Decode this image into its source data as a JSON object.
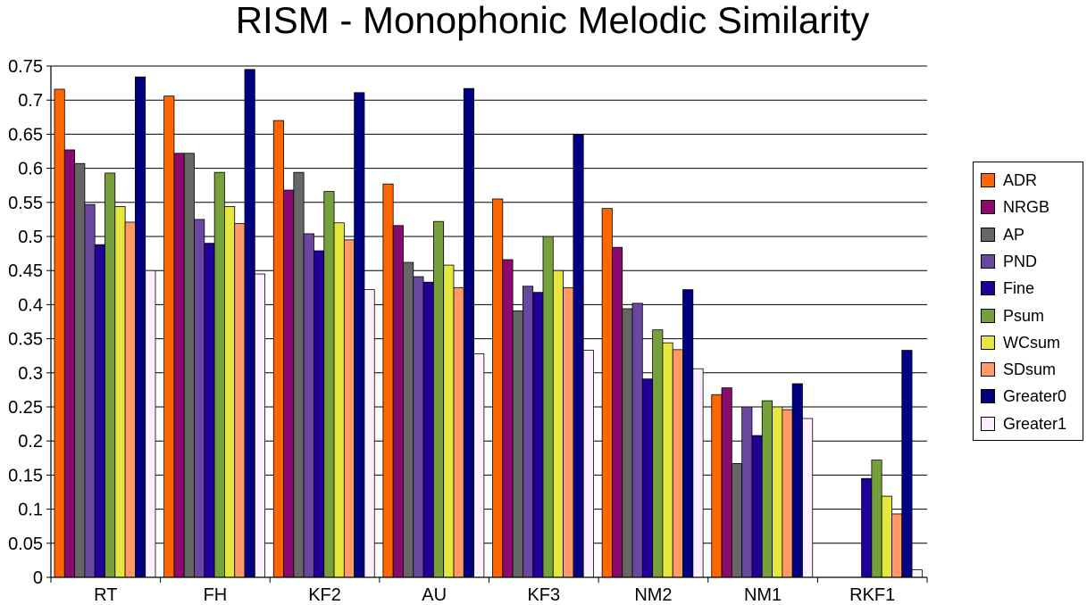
{
  "chart_data": {
    "type": "bar",
    "title": "RISM - Monophonic Melodic Similarity",
    "xlabel": "",
    "ylabel": "",
    "ylim": [
      0,
      0.75
    ],
    "yticks": [
      "0",
      "0.05",
      "0.1",
      "0.15",
      "0.2",
      "0.25",
      "0.3",
      "0.35",
      "0.4",
      "0.45",
      "0.5",
      "0.55",
      "0.6",
      "0.65",
      "0.7",
      "0.75"
    ],
    "grid": true,
    "legend_position": "right",
    "categories": [
      "RT",
      "FH",
      "KF2",
      "AU",
      "KF3",
      "NM2",
      "NM1",
      "RKF1"
    ],
    "series": [
      {
        "name": "ADR",
        "color": "#FF6600",
        "values": [
          0.716,
          0.706,
          0.67,
          0.577,
          0.555,
          0.541,
          0.268,
          0.0
        ]
      },
      {
        "name": "NRGB",
        "color": "#8B0A6E",
        "values": [
          0.627,
          0.622,
          0.568,
          0.516,
          0.466,
          0.484,
          0.278,
          0.0
        ]
      },
      {
        "name": "AP",
        "color": "#666666",
        "values": [
          0.607,
          0.622,
          0.594,
          0.462,
          0.391,
          0.394,
          0.167,
          0.0
        ]
      },
      {
        "name": "PND",
        "color": "#6A48A0",
        "values": [
          0.547,
          0.525,
          0.504,
          0.441,
          0.427,
          0.402,
          0.25,
          0.0
        ]
      },
      {
        "name": "Fine",
        "color": "#200099",
        "values": [
          0.488,
          0.49,
          0.479,
          0.433,
          0.418,
          0.291,
          0.208,
          0.145
        ]
      },
      {
        "name": "Psum",
        "color": "#77A03C",
        "values": [
          0.593,
          0.594,
          0.566,
          0.522,
          0.5,
          0.363,
          0.259,
          0.172
        ]
      },
      {
        "name": "WCsum",
        "color": "#E6E640",
        "values": [
          0.544,
          0.544,
          0.52,
          0.458,
          0.45,
          0.344,
          0.25,
          0.119
        ]
      },
      {
        "name": "SDsum",
        "color": "#FF9966",
        "values": [
          0.521,
          0.519,
          0.495,
          0.425,
          0.425,
          0.334,
          0.246,
          0.093
        ]
      },
      {
        "name": "Greater0",
        "color": "#000080",
        "values": [
          0.734,
          0.745,
          0.711,
          0.717,
          0.65,
          0.422,
          0.284,
          0.333
        ]
      },
      {
        "name": "Greater1",
        "color": "#FCEEFC",
        "values": [
          0.45,
          0.445,
          0.422,
          0.328,
          0.333,
          0.306,
          0.233,
          0.011
        ]
      }
    ]
  }
}
